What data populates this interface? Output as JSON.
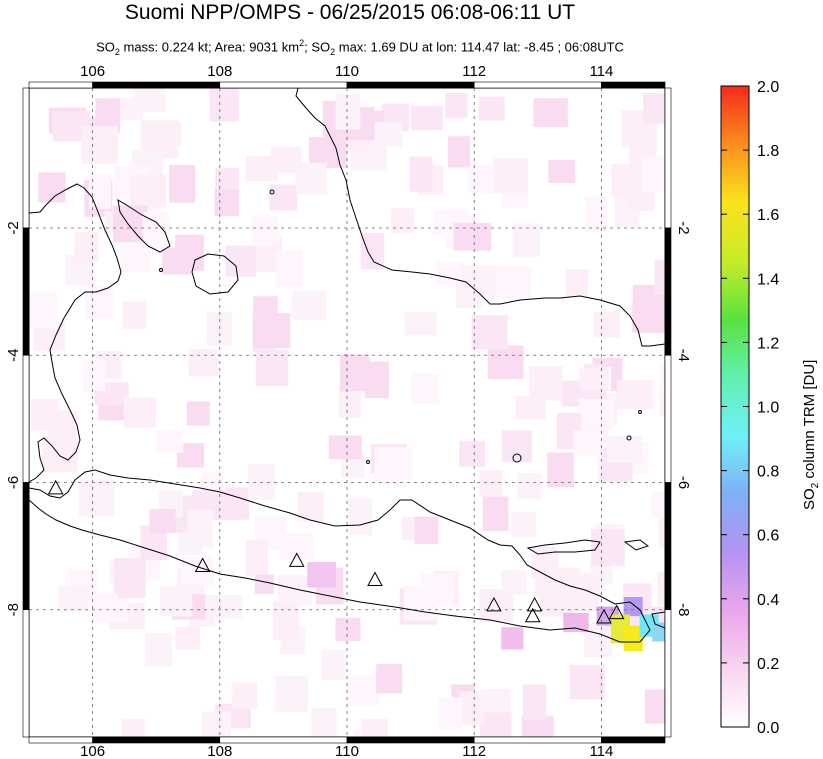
{
  "title": "Suomi NPP/OMPS - 06/25/2015 06:08-06:11 UT",
  "subtitle": {
    "so2_mass_label": "SO",
    "so2_mass_sub": "2",
    "mass_text": " mass: 0.224 kt; Area: 9031 km",
    "area_sup": "2",
    "sep": "; SO",
    "so2_max_sub": "2",
    "max_text": " max: 1.69 DU at lon: 114.47 lat: -8.45 ; 06:08UTC"
  },
  "map": {
    "lon_range": [
      105,
      115
    ],
    "lat_range": [
      -10,
      0.2
    ],
    "lon_ticks": [
      "106",
      "108",
      "110",
      "112",
      "114"
    ],
    "lat_ticks": [
      "-2",
      "-4",
      "-6",
      "-8"
    ],
    "lat_ticks_right": [
      "-2",
      "-4",
      "-6",
      "-8"
    ],
    "grid": "dashed",
    "volcano_markers": [
      {
        "lon": 105.42,
        "lat": -6.1
      },
      {
        "lon": 107.73,
        "lat": -7.32
      },
      {
        "lon": 109.21,
        "lat": -7.24
      },
      {
        "lon": 110.44,
        "lat": -7.54
      },
      {
        "lon": 112.31,
        "lat": -7.94
      },
      {
        "lon": 112.92,
        "lat": -8.11
      },
      {
        "lon": 112.95,
        "lat": -7.94
      },
      {
        "lon": 114.04,
        "lat": -8.13
      },
      {
        "lon": 114.24,
        "lat": -8.06
      }
    ],
    "max_location": {
      "lon": 114.47,
      "lat": -8.45,
      "value": 1.69
    }
  },
  "colorbar": {
    "ticks": [
      "0.0",
      "0.2",
      "0.4",
      "0.6",
      "0.8",
      "1.0",
      "1.2",
      "1.4",
      "1.6",
      "1.8",
      "2.0"
    ],
    "title_prefix": "SO",
    "title_sub": "2",
    "title_suffix": " column TRM [DU]",
    "range": [
      0,
      2
    ],
    "colors": [
      "#ffffff",
      "#f9d4f0",
      "#e9a6ec",
      "#b493f2",
      "#7fb0f5",
      "#6ff0f8",
      "#60f0b0",
      "#5ae23e",
      "#c8ec28",
      "#fbe31c",
      "#fb8d1e",
      "#f92a1b"
    ]
  }
}
